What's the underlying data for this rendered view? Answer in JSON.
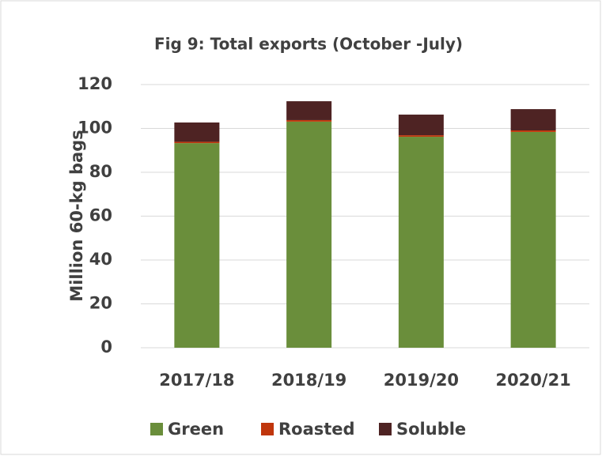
{
  "chart_data": {
    "type": "stacked_bar",
    "title": "Fig 9: Total exports (October -July)",
    "y_label": "Million 60-kg bags",
    "categories": [
      "2017/18",
      "2018/19",
      "2019/20",
      "2020/21"
    ],
    "series": [
      {
        "name": "Green",
        "color": "#6a8e3b",
        "values": [
          93.3,
          103.1,
          96.2,
          98.4
        ]
      },
      {
        "name": "Roasted",
        "color": "#c0360c",
        "values": [
          0.6,
          0.7,
          0.7,
          0.7
        ]
      },
      {
        "name": "Soluble",
        "color": "#4e2323",
        "values": [
          8.8,
          8.6,
          9.4,
          9.7
        ]
      }
    ],
    "ylim": [
      0,
      120
    ],
    "yticks": [
      0,
      20,
      40,
      60,
      80,
      100,
      120
    ],
    "grid": true,
    "legend": "bottom"
  }
}
